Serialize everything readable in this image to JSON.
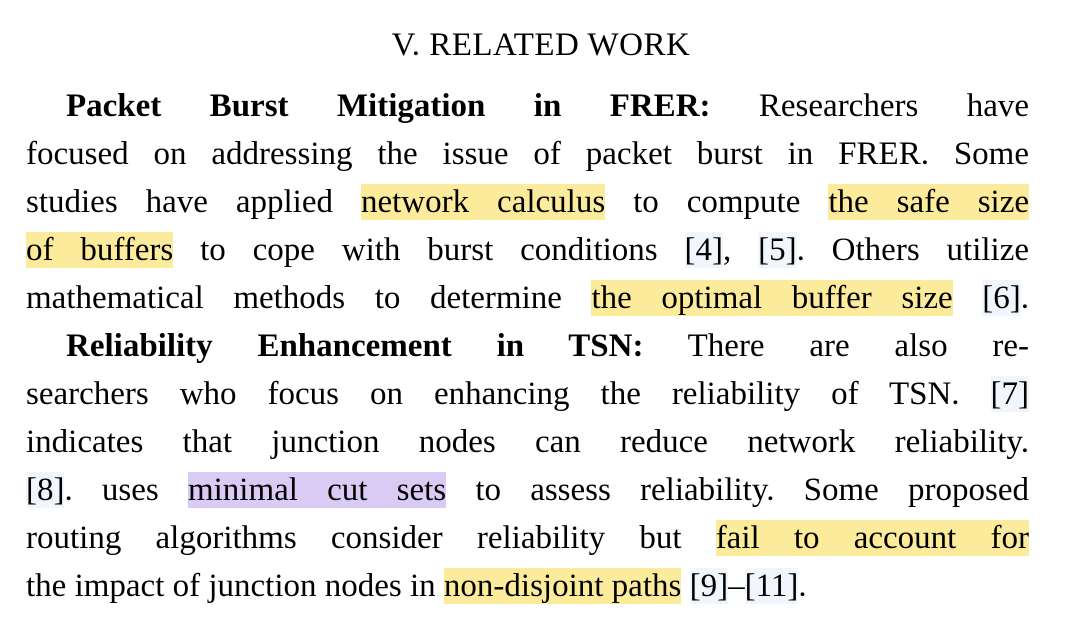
{
  "section": {
    "heading": "V. RELATED WORK"
  },
  "para1": {
    "title": "Packet Burst Mitigation in FRER:",
    "lines": [
      {
        "segments": [
          {
            "text": " Researchers have"
          }
        ]
      },
      {
        "segments": [
          {
            "text": "focused on addressing the issue of packet burst in FRER. Some"
          }
        ]
      },
      {
        "segments": [
          {
            "text": "studies have applied "
          },
          {
            "text": "network calculus"
          },
          {
            "text": " to compute "
          },
          {
            "text": "the safe size"
          }
        ]
      },
      {
        "segments": [
          {
            "text": "of buffers"
          },
          {
            "text": " to cope with burst conditions "
          },
          {
            "text": "[4]"
          },
          {
            "text": ", "
          },
          {
            "text": "[5]"
          },
          {
            "text": ". Others utilize"
          }
        ]
      },
      {
        "segments": [
          {
            "text": "mathematical methods to determine "
          },
          {
            "text": "the optimal buffer size"
          },
          {
            "text": " "
          },
          {
            "text": "[6]"
          },
          {
            "text": "."
          }
        ]
      }
    ]
  },
  "para2": {
    "title": "Reliability Enhancement in TSN:",
    "lines": [
      {
        "segments": [
          {
            "text": " There are also re-"
          }
        ]
      },
      {
        "segments": [
          {
            "text": "searchers who focus on enhancing the reliability of TSN. "
          },
          {
            "text": "[7]"
          }
        ]
      },
      {
        "segments": [
          {
            "text": "indicates that junction nodes can reduce network reliability."
          }
        ]
      },
      {
        "segments": [
          {
            "text": "[8]"
          },
          {
            "text": ". uses "
          },
          {
            "text": "minimal cut sets"
          },
          {
            "text": " to assess reliability. Some proposed"
          }
        ]
      },
      {
        "segments": [
          {
            "text": "routing algorithms consider reliability but "
          },
          {
            "text": "fail to account for"
          }
        ]
      },
      {
        "segments": [
          {
            "text": "the impact of junction nodes in "
          },
          {
            "text": "non-disjoint paths"
          },
          {
            "text": " "
          },
          {
            "text": "[9]"
          },
          {
            "text": "–"
          },
          {
            "text": "[11]"
          },
          {
            "text": "."
          }
        ]
      }
    ]
  },
  "colors": {
    "highlight_yellow": "#fdeb9c",
    "highlight_purple": "#d9cbf3",
    "citation_tint": "#f1f6fc"
  }
}
